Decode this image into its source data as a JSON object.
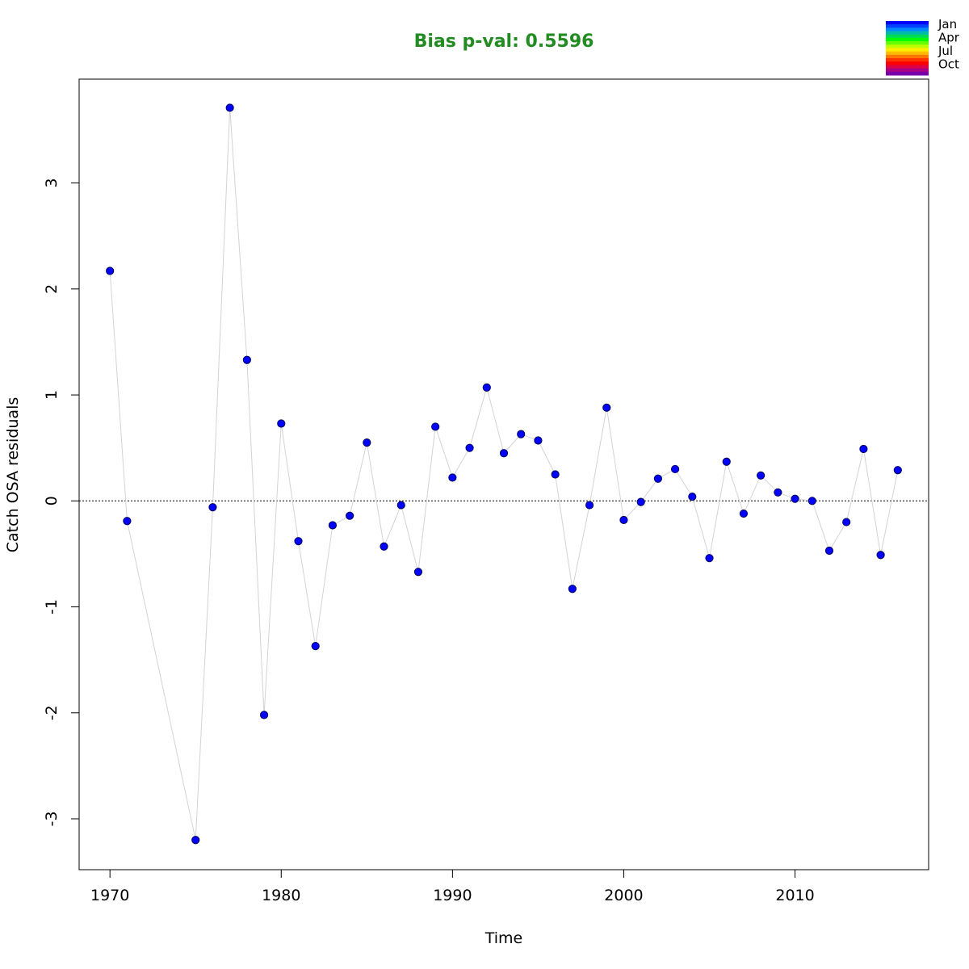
{
  "chart_data": {
    "type": "scatter",
    "title": "Bias p-val: 0.5596",
    "xlabel": "Time",
    "ylabel": "Catch OSA residuals",
    "xlim": [
      1968.2,
      2017.8
    ],
    "ylim": [
      -3.48,
      3.98
    ],
    "x_ticks": [
      1970,
      1980,
      1990,
      2000,
      2010
    ],
    "y_ticks": [
      -3,
      -2,
      -1,
      0,
      1,
      2,
      3
    ],
    "reference_line": 0,
    "grid": false,
    "colors": {
      "title": "#228B22",
      "point_fill": "#0000FF",
      "point_edge": "#000055",
      "connector": "#d3d3d3",
      "reference": "#000000"
    },
    "legend": {
      "placement": "top-right",
      "labels": [
        "Jan",
        "Apr",
        "Jul",
        "Oct"
      ],
      "colors": [
        "#0000FF",
        "#0044FF",
        "#0088FF",
        "#00BBAA",
        "#00DD55",
        "#00FF00",
        "#66FF00",
        "#BBFF00",
        "#FFEE00",
        "#FFBB00",
        "#FF7700",
        "#FF3300",
        "#FF0000",
        "#DD0044",
        "#AA0088",
        "#7700AA"
      ]
    },
    "series": [
      {
        "x": [
          1970,
          1971,
          1975,
          1976,
          1977,
          1978,
          1979,
          1980,
          1981,
          1982,
          1983,
          1984,
          1985,
          1986,
          1987,
          1988,
          1989,
          1990,
          1991,
          1992,
          1993,
          1994,
          1995,
          1996,
          1997,
          1998,
          1999,
          2000,
          2001,
          2002,
          2003,
          2004,
          2005,
          2006,
          2007,
          2008,
          2009,
          2010,
          2011,
          2012,
          2013,
          2014,
          2015,
          2016
        ],
        "values": [
          2.17,
          -0.19,
          -3.2,
          -0.06,
          3.71,
          1.33,
          -2.02,
          0.73,
          -0.38,
          -1.37,
          -0.23,
          -0.14,
          0.55,
          -0.43,
          -0.04,
          -0.67,
          0.7,
          0.22,
          0.5,
          1.07,
          0.45,
          0.63,
          0.57,
          0.25,
          -0.83,
          -0.04,
          0.88,
          -0.18,
          -0.01,
          0.21,
          0.3,
          0.04,
          -0.54,
          0.37,
          -0.12,
          0.24,
          0.08,
          0.02,
          0.0,
          -0.47,
          -0.2,
          0.49,
          -0.51,
          0.29
        ]
      }
    ]
  }
}
